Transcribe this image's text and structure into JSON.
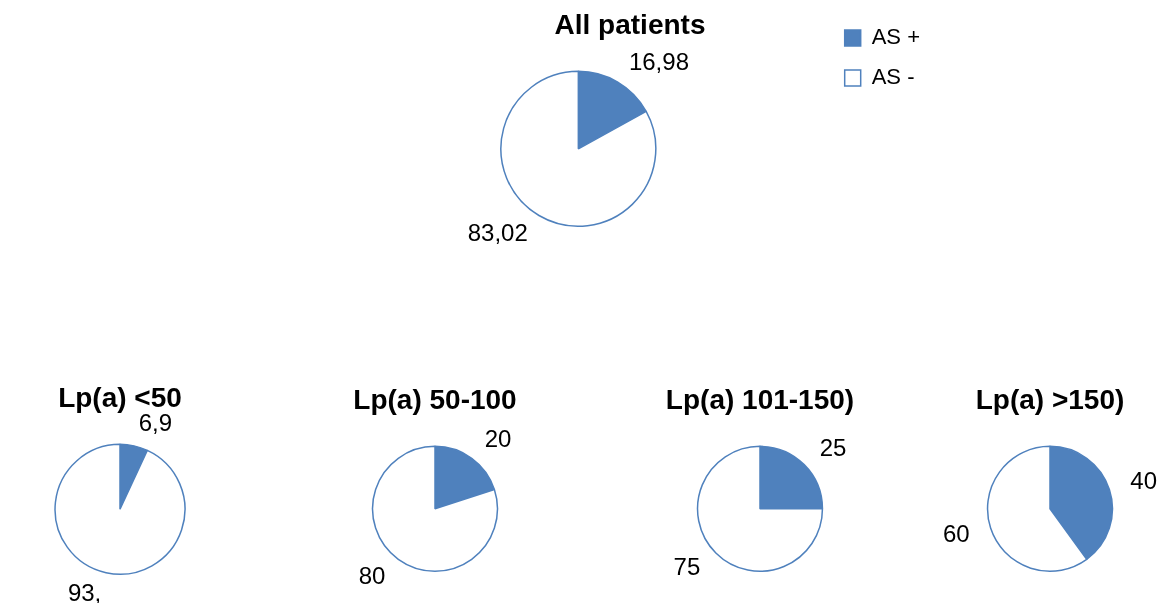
{
  "chart_data": [
    {
      "type": "pie",
      "title": "All patients",
      "categories": [
        "AS +",
        "AS -"
      ],
      "values": [
        16.98,
        83.02
      ],
      "colors": [
        "#4f81bd",
        "#ffffff"
      ],
      "value_labels": [
        "16,98",
        "83,02"
      ],
      "legend": "right"
    },
    {
      "type": "pie",
      "title": "Lp(a) <50",
      "values": [
        6.9,
        93.1
      ],
      "colors": [
        "#4f81bd",
        "#ffffff"
      ],
      "value_labels": [
        "6,9",
        "93,"
      ]
    },
    {
      "type": "pie",
      "title": "Lp(a) 50-100",
      "values": [
        20,
        80
      ],
      "colors": [
        "#4f81bd",
        "#ffffff"
      ],
      "value_labels": [
        "20",
        "80"
      ]
    },
    {
      "type": "pie",
      "title": "Lp(a) 101-150)",
      "values": [
        25,
        75
      ],
      "colors": [
        "#4f81bd",
        "#ffffff"
      ],
      "value_labels": [
        "25",
        "75"
      ]
    },
    {
      "type": "pie",
      "title": "Lp(a) >150)",
      "values": [
        40,
        60
      ],
      "colors": [
        "#4f81bd",
        "#ffffff"
      ],
      "value_labels": [
        "40",
        "60"
      ]
    }
  ]
}
